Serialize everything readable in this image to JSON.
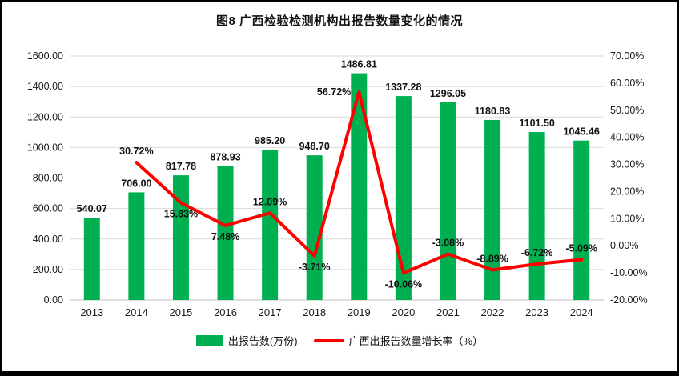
{
  "chart_data": {
    "type": "combo-bar-line",
    "title": "图8  广西检验检测机构出报告数量变化的情况",
    "categories": [
      "2013",
      "2014",
      "2015",
      "2016",
      "2017",
      "2018",
      "2019",
      "2020",
      "2021",
      "2022",
      "2023",
      "2024"
    ],
    "series": [
      {
        "name": "出报告数(万份)",
        "type": "bar",
        "axis": "left",
        "color": "#00B050",
        "values": [
          540.07,
          706.0,
          817.78,
          878.93,
          985.2,
          948.7,
          1486.81,
          1337.28,
          1296.05,
          1180.83,
          1101.5,
          1045.46
        ],
        "labels": [
          "540.07",
          "706.00",
          "817.78",
          "878.93",
          "985.20",
          "948.70",
          "1486.81",
          "1337.28",
          "1296.05",
          "1180.83",
          "1101.50",
          "1045.46"
        ]
      },
      {
        "name": "广西出报告数量增长率（%）",
        "type": "line",
        "axis": "right",
        "color": "#FF0000",
        "values": [
          null,
          30.72,
          15.83,
          7.48,
          12.09,
          -3.71,
          56.72,
          -10.06,
          -3.08,
          -8.89,
          -6.72,
          -5.09
        ],
        "labels": [
          "",
          "30.72%",
          "15.83%",
          "7.48%",
          "12.09%",
          "-3.71%",
          "56.72%",
          "-10.06%",
          "-3.08%",
          "-8.89%",
          "-6.72%",
          "-5.09%"
        ],
        "label_placement": [
          "",
          "above",
          "below",
          "below",
          "above",
          "below",
          "left",
          "below",
          "above",
          "above",
          "above",
          "above"
        ]
      }
    ],
    "left_axis": {
      "min": 0,
      "max": 1600,
      "step": 200,
      "tick_labels": [
        "0.00",
        "200.00",
        "400.00",
        "600.00",
        "800.00",
        "1000.00",
        "1200.00",
        "1400.00",
        "1600.00"
      ]
    },
    "right_axis": {
      "min": -20,
      "max": 70,
      "step": 10,
      "tick_labels": [
        "-20.00%",
        "-10.00%",
        "0.00%",
        "10.00%",
        "20.00%",
        "30.00%",
        "40.00%",
        "50.00%",
        "60.00%",
        "70.00%"
      ]
    },
    "grid": true,
    "legend_position": "bottom"
  }
}
